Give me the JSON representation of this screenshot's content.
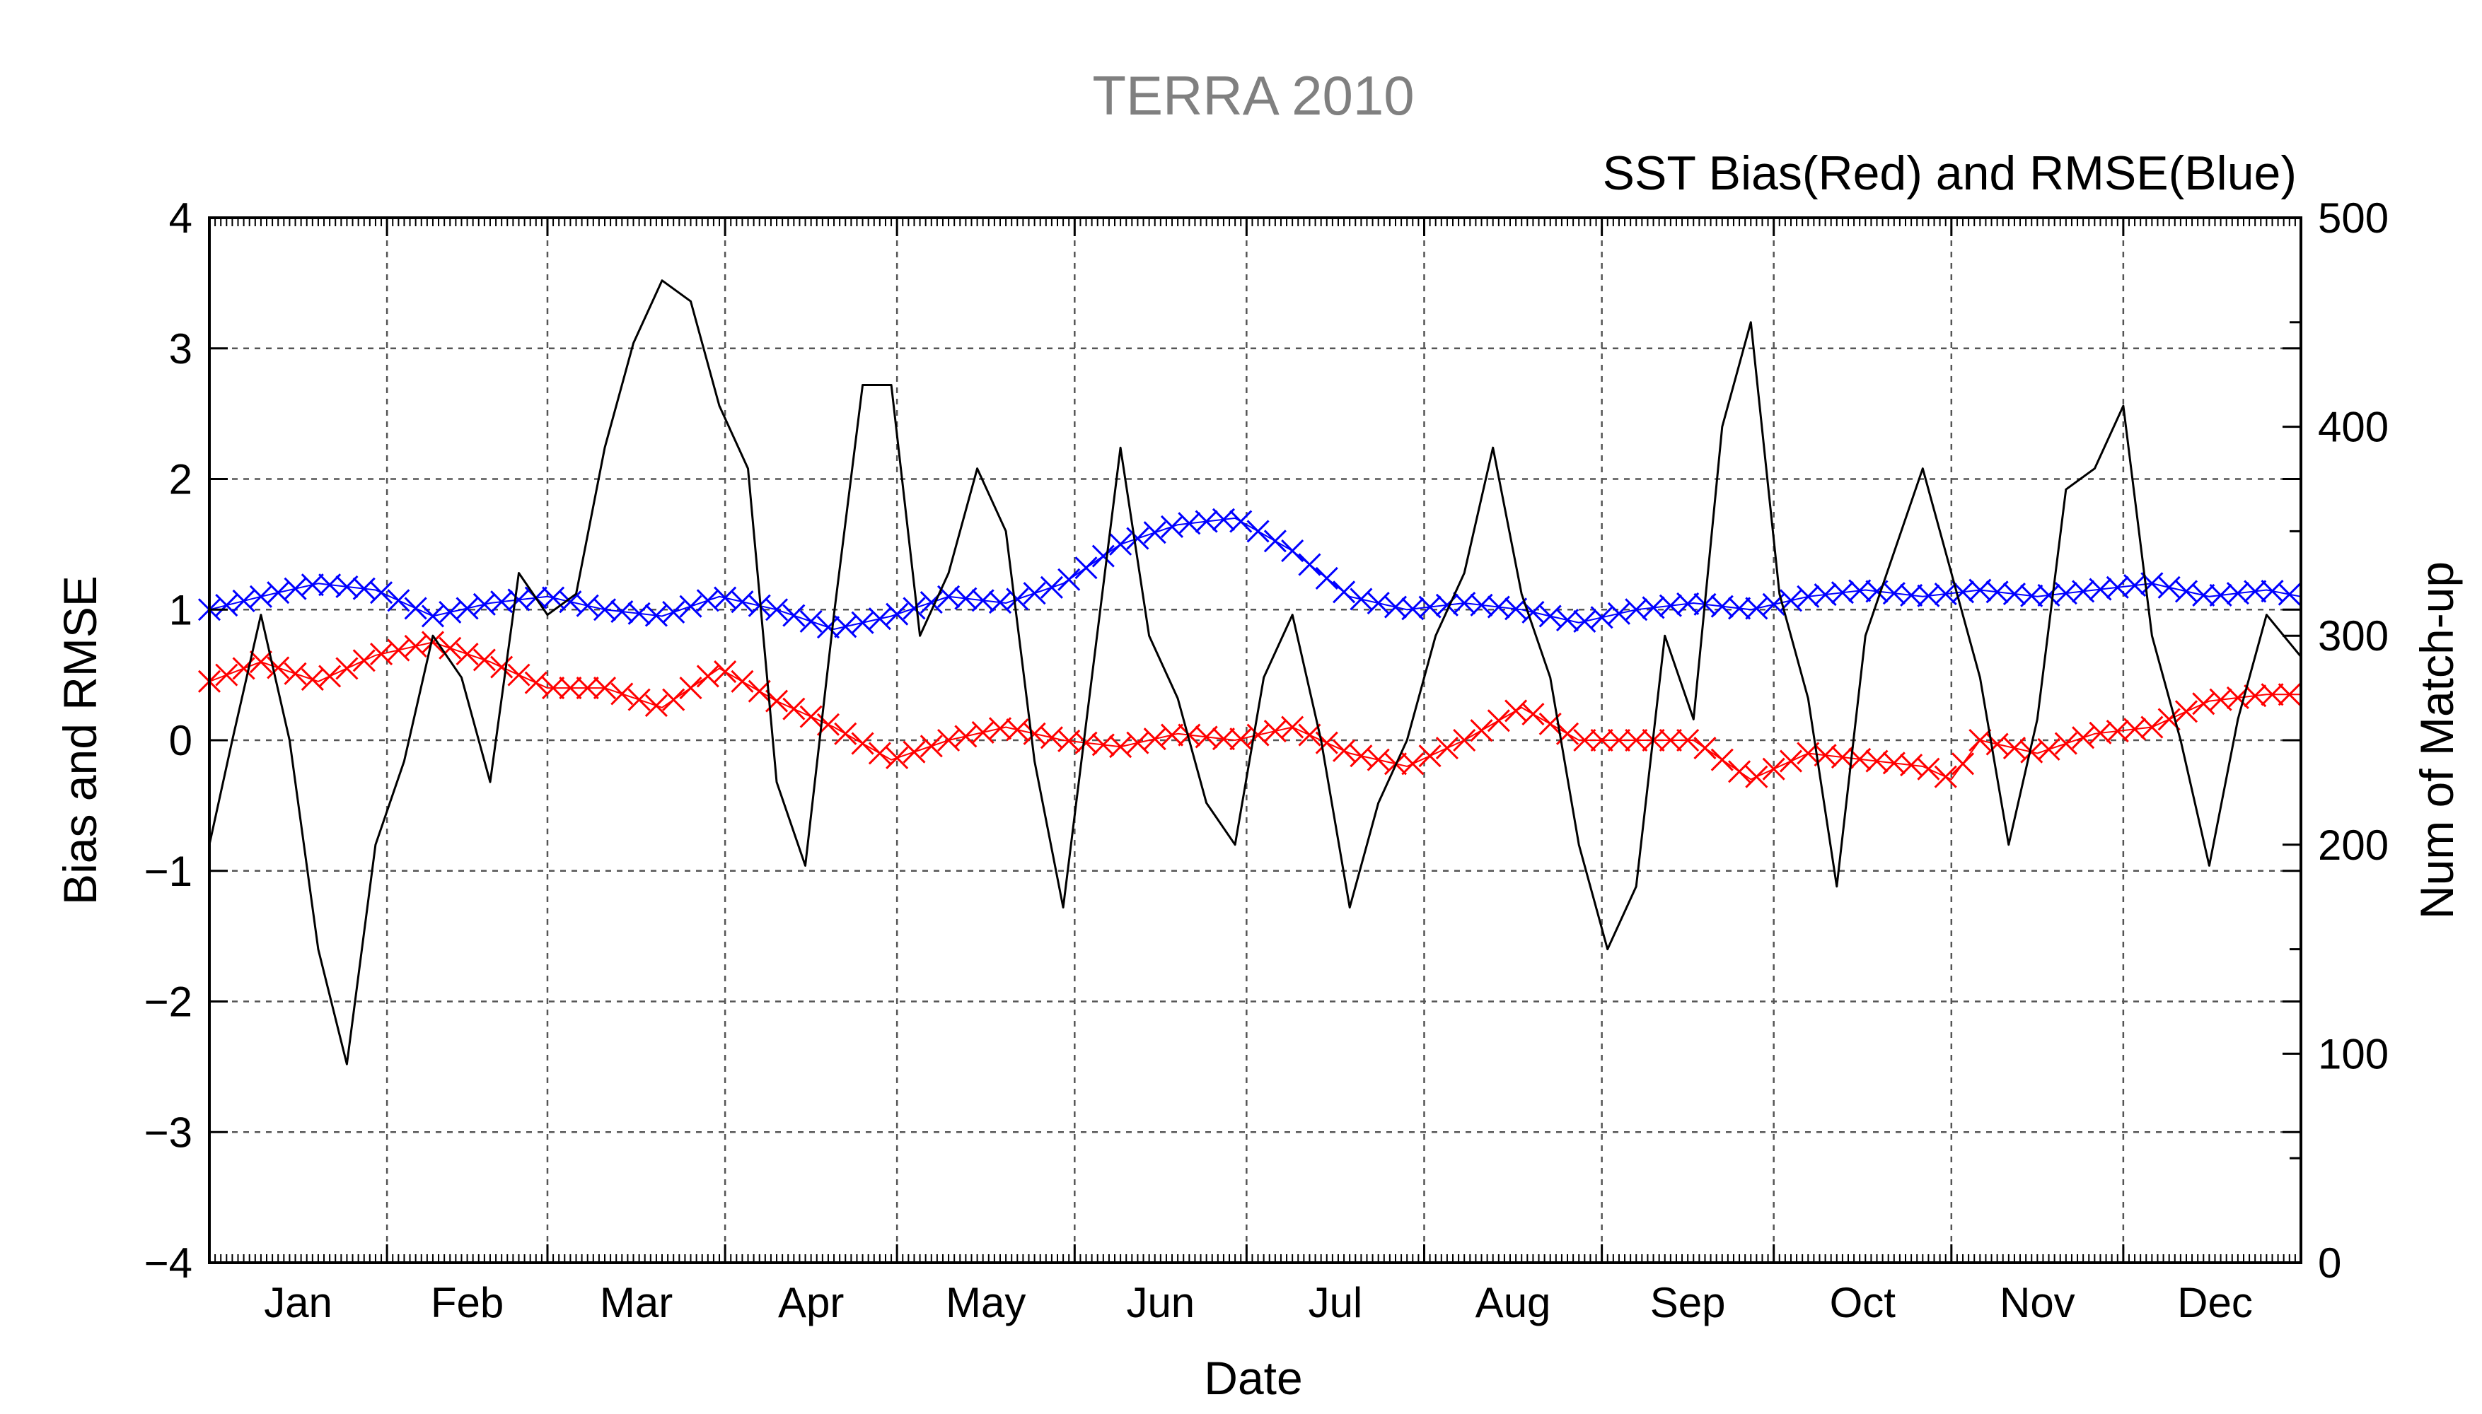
{
  "chart_data": {
    "type": "line",
    "title": "TERRA 2010",
    "subtitle": "SST Bias(Red) and RMSE(Blue)",
    "xlabel": "Date",
    "ylabel": "Bias and RMSE",
    "y2label": "Num of Match-up",
    "ylim": [
      -4,
      4
    ],
    "y2lim": [
      0,
      500
    ],
    "xlim": [
      1,
      366
    ],
    "yticks": [
      "-4",
      "-3",
      "-2",
      "-1",
      "0",
      "1",
      "2",
      "3",
      "4"
    ],
    "y2ticks": [
      "0",
      "100",
      "200",
      "300",
      "400",
      "500"
    ],
    "months": [
      "Jan",
      "Feb",
      "Mar",
      "Apr",
      "May",
      "Jun",
      "Jul",
      "Aug",
      "Sep",
      "Oct",
      "Nov",
      "Dec"
    ],
    "month_start_days": [
      1,
      32,
      60,
      91,
      121,
      152,
      182,
      213,
      244,
      274,
      305,
      335
    ],
    "grid": true,
    "series": [
      {
        "axis": "y",
        "color": "#ff0000",
        "marker": "x",
        "values_by_day": [
          [
            1,
            0.45
          ],
          [
            10,
            0.6
          ],
          [
            20,
            0.45
          ],
          [
            30,
            0.65
          ],
          [
            40,
            0.75
          ],
          [
            50,
            0.6
          ],
          [
            60,
            0.4
          ],
          [
            70,
            0.4
          ],
          [
            80,
            0.25
          ],
          [
            90,
            0.55
          ],
          [
            100,
            0.3
          ],
          [
            110,
            0.1
          ],
          [
            120,
            -0.15
          ],
          [
            130,
            0.0
          ],
          [
            140,
            0.1
          ],
          [
            150,
            0.0
          ],
          [
            160,
            -0.05
          ],
          [
            170,
            0.05
          ],
          [
            180,
            0.0
          ],
          [
            190,
            0.1
          ],
          [
            200,
            -0.1
          ],
          [
            210,
            -0.2
          ],
          [
            220,
            0.0
          ],
          [
            230,
            0.25
          ],
          [
            240,
            0.0
          ],
          [
            250,
            0.0
          ],
          [
            260,
            0.0
          ],
          [
            270,
            -0.3
          ],
          [
            280,
            -0.1
          ],
          [
            290,
            -0.15
          ],
          [
            300,
            -0.2
          ],
          [
            305,
            -0.3
          ],
          [
            310,
            0.0
          ],
          [
            320,
            -0.1
          ],
          [
            330,
            0.05
          ],
          [
            340,
            0.1
          ],
          [
            350,
            0.3
          ],
          [
            360,
            0.35
          ],
          [
            366,
            0.35
          ]
        ]
      },
      {
        "axis": "y",
        "color": "#0000ff",
        "marker": "x",
        "values_by_day": [
          [
            1,
            1.0
          ],
          [
            10,
            1.1
          ],
          [
            20,
            1.2
          ],
          [
            30,
            1.15
          ],
          [
            40,
            0.95
          ],
          [
            50,
            1.05
          ],
          [
            60,
            1.1
          ],
          [
            70,
            1.0
          ],
          [
            80,
            0.95
          ],
          [
            90,
            1.1
          ],
          [
            100,
            1.0
          ],
          [
            110,
            0.85
          ],
          [
            120,
            0.95
          ],
          [
            130,
            1.1
          ],
          [
            140,
            1.05
          ],
          [
            150,
            1.2
          ],
          [
            160,
            1.5
          ],
          [
            170,
            1.65
          ],
          [
            180,
            1.7
          ],
          [
            190,
            1.45
          ],
          [
            200,
            1.1
          ],
          [
            210,
            1.0
          ],
          [
            220,
            1.05
          ],
          [
            230,
            1.0
          ],
          [
            240,
            0.9
          ],
          [
            250,
            1.0
          ],
          [
            260,
            1.05
          ],
          [
            270,
            1.0
          ],
          [
            280,
            1.1
          ],
          [
            290,
            1.15
          ],
          [
            300,
            1.1
          ],
          [
            310,
            1.15
          ],
          [
            320,
            1.1
          ],
          [
            330,
            1.15
          ],
          [
            340,
            1.2
          ],
          [
            350,
            1.1
          ],
          [
            360,
            1.15
          ],
          [
            366,
            1.1
          ]
        ]
      },
      {
        "axis": "y2",
        "color": "#000000",
        "marker": "none",
        "values_by_day": [
          [
            1,
            200
          ],
          [
            5,
            250
          ],
          [
            10,
            310
          ],
          [
            15,
            250
          ],
          [
            20,
            150
          ],
          [
            25,
            95
          ],
          [
            30,
            200
          ],
          [
            35,
            240
          ],
          [
            40,
            300
          ],
          [
            45,
            280
          ],
          [
            50,
            230
          ],
          [
            55,
            330
          ],
          [
            60,
            310
          ],
          [
            65,
            320
          ],
          [
            70,
            390
          ],
          [
            75,
            440
          ],
          [
            80,
            470
          ],
          [
            85,
            460
          ],
          [
            90,
            410
          ],
          [
            95,
            380
          ],
          [
            100,
            230
          ],
          [
            105,
            190
          ],
          [
            110,
            310
          ],
          [
            115,
            420
          ],
          [
            120,
            420
          ],
          [
            125,
            300
          ],
          [
            130,
            330
          ],
          [
            135,
            380
          ],
          [
            140,
            350
          ],
          [
            145,
            240
          ],
          [
            150,
            170
          ],
          [
            155,
            280
          ],
          [
            160,
            390
          ],
          [
            165,
            300
          ],
          [
            170,
            270
          ],
          [
            175,
            220
          ],
          [
            180,
            200
          ],
          [
            185,
            280
          ],
          [
            190,
            310
          ],
          [
            195,
            250
          ],
          [
            200,
            170
          ],
          [
            205,
            220
          ],
          [
            210,
            250
          ],
          [
            215,
            300
          ],
          [
            220,
            330
          ],
          [
            225,
            390
          ],
          [
            230,
            320
          ],
          [
            235,
            280
          ],
          [
            240,
            200
          ],
          [
            245,
            150
          ],
          [
            250,
            180
          ],
          [
            255,
            300
          ],
          [
            260,
            260
          ],
          [
            265,
            400
          ],
          [
            270,
            450
          ],
          [
            275,
            320
          ],
          [
            280,
            270
          ],
          [
            285,
            180
          ],
          [
            290,
            300
          ],
          [
            295,
            340
          ],
          [
            300,
            380
          ],
          [
            305,
            330
          ],
          [
            310,
            280
          ],
          [
            315,
            200
          ],
          [
            320,
            260
          ],
          [
            325,
            370
          ],
          [
            330,
            380
          ],
          [
            335,
            410
          ],
          [
            340,
            300
          ],
          [
            345,
            250
          ],
          [
            350,
            190
          ],
          [
            355,
            260
          ],
          [
            360,
            310
          ],
          [
            366,
            290
          ]
        ]
      }
    ]
  }
}
